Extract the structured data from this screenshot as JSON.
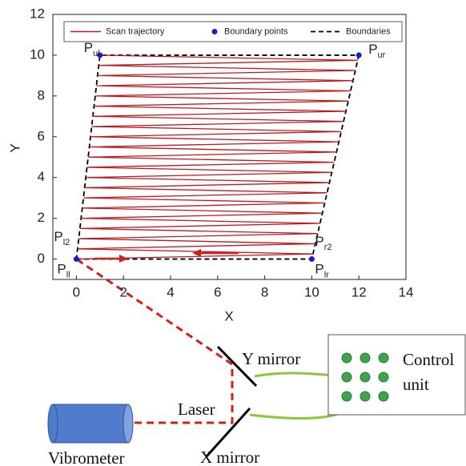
{
  "chart_data": {
    "type": "line",
    "xlabel": "X",
    "ylabel": "Y",
    "xlim": [
      -1,
      14
    ],
    "ylim": [
      -1,
      12
    ],
    "xticks": [
      0,
      2,
      4,
      6,
      8,
      10,
      12,
      14
    ],
    "yticks": [
      0,
      2,
      4,
      6,
      8,
      10,
      12
    ],
    "grid": false,
    "legend": "top",
    "series": [
      {
        "name": "Scan trajectory",
        "type": "line",
        "color": "#c0191f",
        "x": [
          0,
          10.05,
          0.05,
          10.15,
          0.1,
          10.25,
          0.15,
          10.35,
          0.2,
          10.45,
          0.25,
          10.55,
          0.3,
          10.65,
          0.35,
          10.75,
          0.4,
          10.85,
          0.45,
          10.95,
          0.5,
          11.05,
          0.55,
          11.15,
          0.6,
          11.25,
          0.65,
          11.35,
          0.7,
          11.45,
          0.75,
          11.55,
          0.8,
          11.65,
          0.85,
          11.75,
          0.9,
          11.85,
          0.95,
          11.95,
          1
        ],
        "y": [
          0,
          0.25,
          0.5,
          0.75,
          1,
          1.25,
          1.5,
          1.75,
          2,
          2.25,
          2.5,
          2.75,
          3,
          3.25,
          3.5,
          3.75,
          4,
          4.25,
          4.5,
          4.75,
          5,
          5.25,
          5.5,
          5.75,
          6,
          6.25,
          6.5,
          6.75,
          7,
          7.25,
          7.5,
          7.75,
          8,
          8.25,
          8.5,
          8.75,
          9,
          9.25,
          9.5,
          9.75,
          10
        ]
      },
      {
        "name": "Boundary points",
        "type": "scatter",
        "color": "#1a1ad8",
        "x": [
          0,
          10,
          12,
          1
        ],
        "y": [
          0,
          0,
          10,
          10
        ],
        "labels": [
          {
            "text": "P",
            "sub": "ll"
          },
          {
            "text": "P",
            "sub": "lr"
          },
          {
            "text": "P",
            "sub": "ur"
          },
          {
            "text": "P",
            "sub": "ul"
          }
        ]
      },
      {
        "name": "Boundaries",
        "type": "line",
        "dashed": true,
        "color": "#000000",
        "x": [
          0,
          10,
          12,
          1,
          0
        ],
        "y": [
          0,
          0,
          10,
          10,
          0
        ]
      }
    ],
    "annotations": [
      {
        "text": "P",
        "sub": "l2",
        "x": 0,
        "y": 0.5
      },
      {
        "text": "P",
        "sub": "r2",
        "x": 10,
        "y": 0.25
      }
    ]
  },
  "diagram": {
    "y_mirror": "Y mirror",
    "x_mirror": "X mirror",
    "laser": "Laser",
    "vibrometer": "Vibrometer",
    "control_unit": [
      "Control",
      "unit"
    ]
  }
}
